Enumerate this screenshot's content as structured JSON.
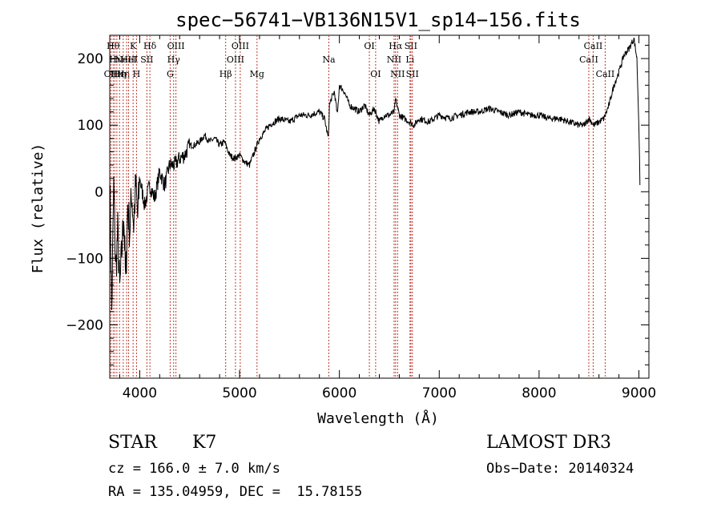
{
  "chart_data": {
    "type": "line",
    "title": "spec−56741−VB136N15V1_sp14−156.fits",
    "xlabel": "Wavelength (Å)",
    "ylabel": "Flux (relative)",
    "xlim": [
      3700,
      9100
    ],
    "ylim": [
      -280,
      235
    ],
    "xticks": [
      4000,
      5000,
      6000,
      7000,
      8000,
      9000
    ],
    "yticks": [
      -200,
      -100,
      0,
      100,
      200
    ],
    "ytick_labels": [
      "−200",
      "−100",
      "0",
      "100",
      "200"
    ],
    "series": [
      {
        "color": "#000000",
        "x": [
          3700,
          3720,
          3740,
          3760,
          3780,
          3800,
          3820,
          3840,
          3860,
          3880,
          3900,
          3920,
          3940,
          3960,
          3980,
          4000,
          4050,
          4100,
          4150,
          4200,
          4250,
          4300,
          4350,
          4400,
          4450,
          4500,
          4550,
          4600,
          4650,
          4700,
          4750,
          4800,
          4850,
          4900,
          4950,
          5000,
          5050,
          5100,
          5150,
          5200,
          5250,
          5300,
          5400,
          5500,
          5600,
          5700,
          5800,
          5850,
          5890,
          5900,
          5920,
          5950,
          5980,
          6000,
          6050,
          6100,
          6150,
          6200,
          6250,
          6300,
          6350,
          6400,
          6450,
          6500,
          6550,
          6563,
          6600,
          6650,
          6700,
          6750,
          6800,
          6900,
          7000,
          7100,
          7200,
          7300,
          7400,
          7500,
          7600,
          7700,
          7800,
          7900,
          8000,
          8100,
          8200,
          8300,
          8400,
          8450,
          8500,
          8550,
          8600,
          8650,
          8700,
          8750,
          8800,
          8850,
          8900,
          8950,
          8980,
          9000,
          9010
        ],
        "y": [
          20,
          -180,
          10,
          -120,
          -60,
          -150,
          -90,
          -30,
          -140,
          -20,
          -60,
          0,
          -50,
          10,
          -40,
          20,
          -20,
          10,
          -10,
          30,
          10,
          40,
          40,
          50,
          55,
          70,
          70,
          75,
          85,
          75,
          80,
          70,
          75,
          55,
          50,
          55,
          45,
          40,
          60,
          80,
          90,
          100,
          110,
          105,
          115,
          115,
          120,
          110,
          80,
          130,
          140,
          150,
          115,
          160,
          150,
          130,
          125,
          120,
          130,
          115,
          125,
          105,
          115,
          115,
          120,
          140,
          115,
          110,
          105,
          100,
          110,
          105,
          115,
          110,
          115,
          120,
          120,
          125,
          120,
          115,
          120,
          115,
          115,
          110,
          110,
          105,
          100,
          100,
          110,
          100,
          105,
          110,
          130,
          160,
          180,
          205,
          215,
          230,
          200,
          100,
          10
        ]
      }
    ],
    "lines": [
      {
        "x": 3712,
        "labels": [
          "OII"
        ],
        "rows": [
          2
        ]
      },
      {
        "x": 3734,
        "labels": [
          "Hθ"
        ],
        "rows": [
          0
        ]
      },
      {
        "x": 3750,
        "labels": [
          "Hι"
        ],
        "rows": [
          1
        ]
      },
      {
        "x": 3771,
        "labels": [
          "Hκ"
        ],
        "rows": [
          2
        ]
      },
      {
        "x": 3798,
        "labels": [
          "Hη"
        ],
        "rows": [
          2
        ]
      },
      {
        "x": 3835,
        "labels": [
          "Hη"
        ],
        "rows": [
          2
        ]
      },
      {
        "x": 3869,
        "labels": [
          "NeIII"
        ],
        "rows": [
          1
        ]
      },
      {
        "x": 3889,
        "labels": [
          "HeI"
        ],
        "rows": [
          1
        ]
      },
      {
        "x": 3934,
        "labels": [
          "K"
        ],
        "rows": [
          0
        ]
      },
      {
        "x": 3968,
        "labels": [
          "H"
        ],
        "rows": [
          2
        ]
      },
      {
        "x": 4072,
        "labels": [
          "SII"
        ],
        "rows": [
          1
        ]
      },
      {
        "x": 4102,
        "labels": [
          "Hδ"
        ],
        "rows": [
          0
        ]
      },
      {
        "x": 4305,
        "labels": [
          "G"
        ],
        "rows": [
          2
        ]
      },
      {
        "x": 4340,
        "labels": [
          "Hγ"
        ],
        "rows": [
          1
        ]
      },
      {
        "x": 4363,
        "labels": [
          "OIII"
        ],
        "rows": [
          0
        ]
      },
      {
        "x": 4861,
        "labels": [
          "Hβ"
        ],
        "rows": [
          2
        ]
      },
      {
        "x": 4959,
        "labels": [
          "OIII"
        ],
        "rows": [
          1
        ]
      },
      {
        "x": 5007,
        "labels": [
          "OIII"
        ],
        "rows": [
          0
        ]
      },
      {
        "x": 5175,
        "labels": [
          "Mg"
        ],
        "rows": [
          2
        ]
      },
      {
        "x": 5894,
        "labels": [
          "Na"
        ],
        "rows": [
          1
        ]
      },
      {
        "x": 6300,
        "labels": [
          "OI"
        ],
        "rows": [
          0
        ]
      },
      {
        "x": 6363,
        "labels": [
          "OI"
        ],
        "rows": [
          2
        ]
      },
      {
        "x": 6548,
        "labels": [
          "NII"
        ],
        "rows": [
          1
        ]
      },
      {
        "x": 6563,
        "labels": [
          "Hα"
        ],
        "rows": [
          0
        ]
      },
      {
        "x": 6583,
        "labels": [
          "NII"
        ],
        "rows": [
          2
        ]
      },
      {
        "x": 6707,
        "labels": [
          "Li"
        ],
        "rows": [
          1
        ]
      },
      {
        "x": 6716,
        "labels": [
          "SII"
        ],
        "rows": [
          0
        ]
      },
      {
        "x": 6731,
        "labels": [
          "SII"
        ],
        "rows": [
          2
        ]
      },
      {
        "x": 8498,
        "labels": [
          "CaII"
        ],
        "rows": [
          1
        ]
      },
      {
        "x": 8542,
        "labels": [
          "CaII"
        ],
        "rows": [
          0
        ]
      },
      {
        "x": 8662,
        "labels": [
          "CaII"
        ],
        "rows": [
          2
        ]
      }
    ],
    "grid": false
  },
  "info": {
    "class": "STAR",
    "subclass": "K7",
    "survey": "LAMOST DR3",
    "cz": "cz = 166.0 ± 7.0 km/s",
    "obsdate": "Obs−Date: 20140324",
    "radec": "RA = 135.04959, DEC =  15.78155"
  }
}
